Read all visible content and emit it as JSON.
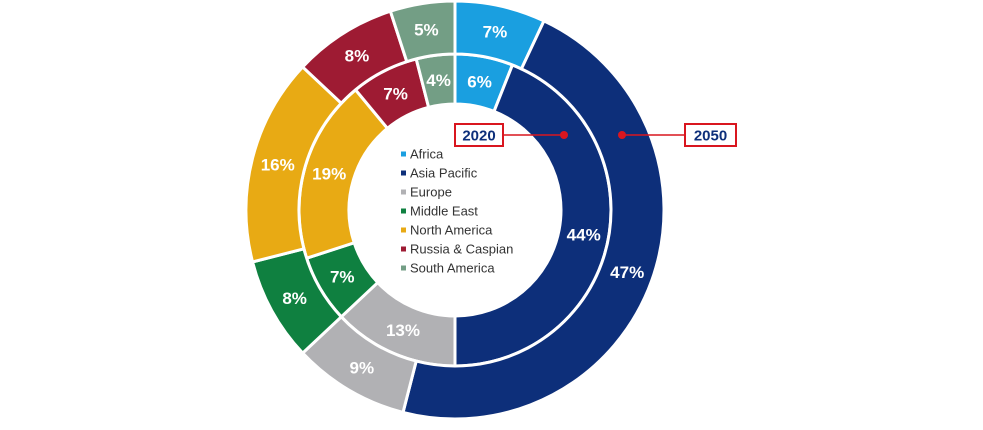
{
  "chart_data": {
    "type": "donut",
    "categories": [
      "Africa",
      "Asia Pacific",
      "Europe",
      "Middle East",
      "North America",
      "Russia & Caspian",
      "South America"
    ],
    "series": [
      {
        "name": "2020",
        "ring": "inner",
        "values": [
          6,
          44,
          13,
          7,
          19,
          7,
          4
        ],
        "labels": [
          "6%",
          "44%",
          "13%",
          "7%",
          "19%",
          "7%",
          "4%"
        ]
      },
      {
        "name": "2050",
        "ring": "outer",
        "values": [
          7,
          47,
          9,
          8,
          16,
          8,
          5
        ],
        "labels": [
          "7%",
          "47%",
          "9%",
          "8%",
          "16%",
          "8%",
          "5%"
        ]
      }
    ],
    "colors": [
      "#1a9fe0",
      "#0d2f7a",
      "#b1b1b4",
      "#0f8040",
      "#e8aa14",
      "#9e1b33",
      "#739e85"
    ],
    "legend": {
      "placement": "center",
      "entries": [
        "Africa",
        "Asia Pacific",
        "Europe",
        "Middle East",
        "North America",
        "Russia & Caspian",
        "South America"
      ]
    },
    "annotations": [
      {
        "text": "2020",
        "target": "inner ring"
      },
      {
        "text": "2050",
        "target": "outer ring"
      }
    ],
    "callout_color": "#d9161f",
    "title": ""
  }
}
